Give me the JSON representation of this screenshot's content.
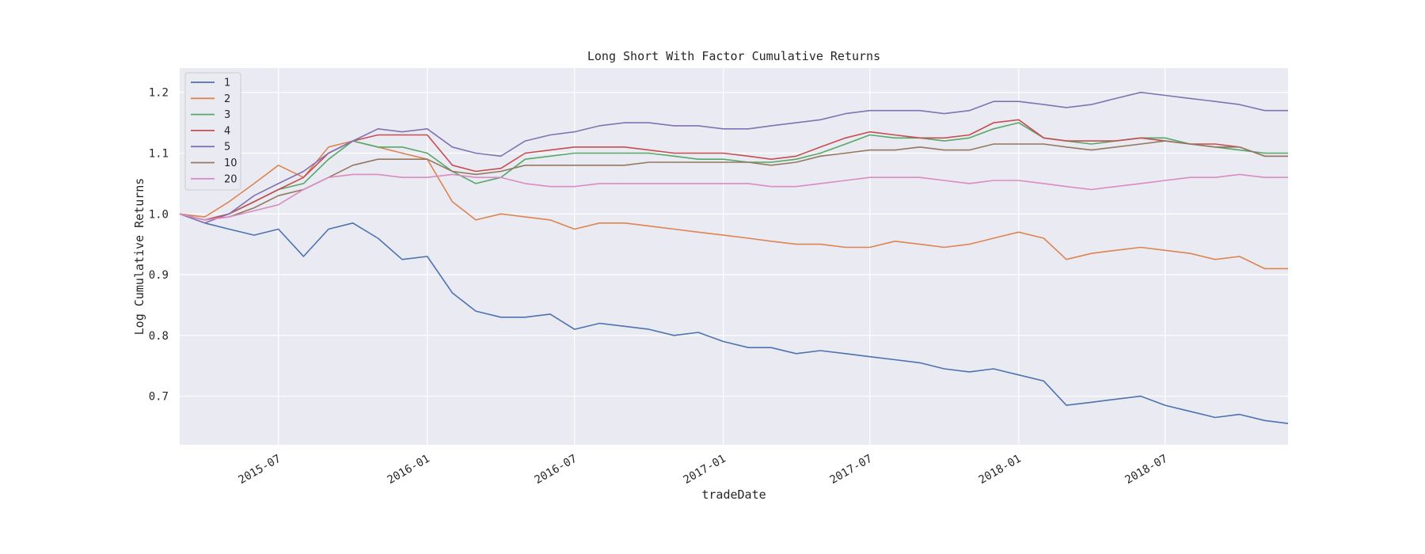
{
  "chart_data": {
    "type": "line",
    "title": "Long Short With Factor Cumulative Returns",
    "xlabel": "tradeDate",
    "ylabel": "Log Cumulative Returns",
    "x_range": [
      "2015-03-01",
      "2018-11-30"
    ],
    "ylim": [
      0.62,
      1.24
    ],
    "y_ticks": [
      0.7,
      0.8,
      0.9,
      1.0,
      1.1,
      1.2
    ],
    "y_tick_labels": [
      "0.7",
      "0.8",
      "0.9",
      "1.0",
      "1.1",
      "1.2"
    ],
    "x_ticks": [
      "2015-07-01",
      "2016-01-01",
      "2016-07-01",
      "2017-01-01",
      "2017-07-01",
      "2018-01-01",
      "2018-07-01"
    ],
    "x_tick_labels": [
      "2015-07",
      "2016-01",
      "2016-07",
      "2017-01",
      "2017-07",
      "2018-01",
      "2018-07"
    ],
    "grid": true,
    "legend_position": "top-left",
    "background": "#eaeaf2",
    "x": [
      "2015-03-01",
      "2015-04-01",
      "2015-05-01",
      "2015-06-01",
      "2015-07-01",
      "2015-08-01",
      "2015-09-01",
      "2015-10-01",
      "2015-11-01",
      "2015-12-01",
      "2016-01-01",
      "2016-02-01",
      "2016-03-01",
      "2016-04-01",
      "2016-05-01",
      "2016-06-01",
      "2016-07-01",
      "2016-08-01",
      "2016-09-01",
      "2016-10-01",
      "2016-11-01",
      "2016-12-01",
      "2017-01-01",
      "2017-02-01",
      "2017-03-01",
      "2017-04-01",
      "2017-05-01",
      "2017-06-01",
      "2017-07-01",
      "2017-08-01",
      "2017-09-01",
      "2017-10-01",
      "2017-11-01",
      "2017-12-01",
      "2018-01-01",
      "2018-02-01",
      "2018-03-01",
      "2018-04-01",
      "2018-05-01",
      "2018-06-01",
      "2018-07-01",
      "2018-08-01",
      "2018-09-01",
      "2018-10-01",
      "2018-11-01",
      "2018-11-30"
    ],
    "series": [
      {
        "name": "1",
        "color": "#4c72b0",
        "values": [
          1.0,
          0.985,
          0.975,
          0.965,
          0.975,
          0.93,
          0.975,
          0.985,
          0.96,
          0.925,
          0.93,
          0.87,
          0.84,
          0.83,
          0.83,
          0.835,
          0.81,
          0.82,
          0.815,
          0.81,
          0.8,
          0.805,
          0.79,
          0.78,
          0.78,
          0.77,
          0.775,
          0.77,
          0.765,
          0.76,
          0.755,
          0.745,
          0.74,
          0.745,
          0.735,
          0.725,
          0.685,
          0.69,
          0.695,
          0.7,
          0.685,
          0.675,
          0.665,
          0.67,
          0.66,
          0.655
        ]
      },
      {
        "name": "2",
        "color": "#dd8452",
        "values": [
          1.0,
          0.995,
          1.02,
          1.05,
          1.08,
          1.06,
          1.11,
          1.12,
          1.11,
          1.1,
          1.09,
          1.02,
          0.99,
          1.0,
          0.995,
          0.99,
          0.975,
          0.985,
          0.985,
          0.98,
          0.975,
          0.97,
          0.965,
          0.96,
          0.955,
          0.95,
          0.95,
          0.945,
          0.945,
          0.955,
          0.95,
          0.945,
          0.95,
          0.96,
          0.97,
          0.96,
          0.925,
          0.935,
          0.94,
          0.945,
          0.94,
          0.935,
          0.925,
          0.93,
          0.91,
          0.91
        ]
      },
      {
        "name": "3",
        "color": "#55a868",
        "values": [
          1.0,
          0.99,
          1.0,
          1.02,
          1.04,
          1.05,
          1.09,
          1.12,
          1.11,
          1.11,
          1.1,
          1.07,
          1.05,
          1.06,
          1.09,
          1.095,
          1.1,
          1.1,
          1.1,
          1.1,
          1.095,
          1.09,
          1.09,
          1.085,
          1.085,
          1.09,
          1.1,
          1.115,
          1.13,
          1.125,
          1.125,
          1.12,
          1.125,
          1.14,
          1.15,
          1.125,
          1.12,
          1.115,
          1.12,
          1.125,
          1.125,
          1.115,
          1.11,
          1.105,
          1.1,
          1.1
        ]
      },
      {
        "name": "4",
        "color": "#c44e52",
        "values": [
          1.0,
          0.99,
          1.0,
          1.02,
          1.04,
          1.06,
          1.1,
          1.12,
          1.13,
          1.13,
          1.13,
          1.08,
          1.07,
          1.075,
          1.1,
          1.105,
          1.11,
          1.11,
          1.11,
          1.105,
          1.1,
          1.1,
          1.1,
          1.095,
          1.09,
          1.095,
          1.11,
          1.125,
          1.135,
          1.13,
          1.125,
          1.125,
          1.13,
          1.15,
          1.155,
          1.125,
          1.12,
          1.12,
          1.12,
          1.125,
          1.12,
          1.115,
          1.115,
          1.11,
          1.095,
          1.095
        ]
      },
      {
        "name": "5",
        "color": "#8172b3",
        "values": [
          1.0,
          0.985,
          1.0,
          1.03,
          1.05,
          1.07,
          1.1,
          1.12,
          1.14,
          1.135,
          1.14,
          1.11,
          1.1,
          1.095,
          1.12,
          1.13,
          1.135,
          1.145,
          1.15,
          1.15,
          1.145,
          1.145,
          1.14,
          1.14,
          1.145,
          1.15,
          1.155,
          1.165,
          1.17,
          1.17,
          1.17,
          1.165,
          1.17,
          1.185,
          1.185,
          1.18,
          1.175,
          1.18,
          1.19,
          1.2,
          1.195,
          1.19,
          1.185,
          1.18,
          1.17,
          1.17
        ]
      },
      {
        "name": "10",
        "color": "#937860",
        "values": [
          1.0,
          0.99,
          0.995,
          1.01,
          1.03,
          1.04,
          1.06,
          1.08,
          1.09,
          1.09,
          1.09,
          1.07,
          1.065,
          1.07,
          1.08,
          1.08,
          1.08,
          1.08,
          1.08,
          1.085,
          1.085,
          1.085,
          1.085,
          1.085,
          1.08,
          1.085,
          1.095,
          1.1,
          1.105,
          1.105,
          1.11,
          1.105,
          1.105,
          1.115,
          1.115,
          1.115,
          1.11,
          1.105,
          1.11,
          1.115,
          1.12,
          1.115,
          1.11,
          1.11,
          1.095,
          1.095
        ]
      },
      {
        "name": "20",
        "color": "#da8bc3",
        "values": [
          1.0,
          0.99,
          0.995,
          1.005,
          1.015,
          1.04,
          1.06,
          1.065,
          1.065,
          1.06,
          1.06,
          1.065,
          1.06,
          1.06,
          1.05,
          1.045,
          1.045,
          1.05,
          1.05,
          1.05,
          1.05,
          1.05,
          1.05,
          1.05,
          1.045,
          1.045,
          1.05,
          1.055,
          1.06,
          1.06,
          1.06,
          1.055,
          1.05,
          1.055,
          1.055,
          1.05,
          1.045,
          1.04,
          1.045,
          1.05,
          1.055,
          1.06,
          1.06,
          1.065,
          1.06,
          1.06
        ]
      }
    ]
  }
}
